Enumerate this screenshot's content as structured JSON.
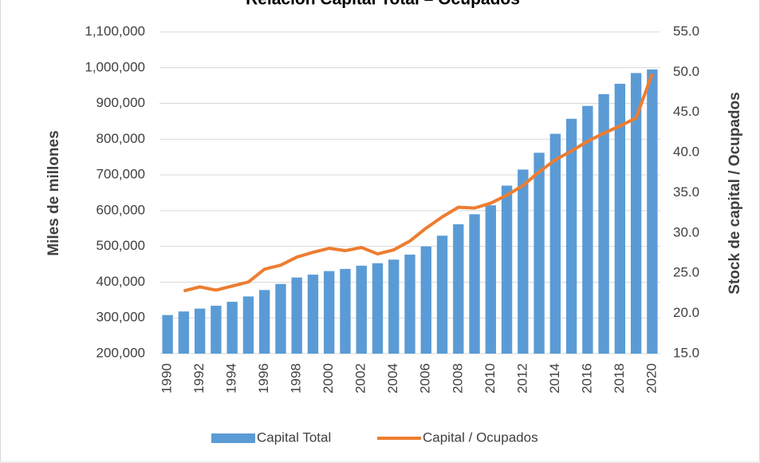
{
  "chart_data": {
    "type": "bar-line",
    "title": "Relación Capital Total – Ocupados",
    "categories": [
      "1990",
      null,
      "1992",
      null,
      "1994",
      null,
      "1996",
      null,
      "1998",
      null,
      "2000",
      null,
      "2002",
      null,
      "2004",
      null,
      "2006",
      null,
      "2008",
      null,
      "2010",
      null,
      "2012",
      null,
      "2014",
      null,
      "2016",
      null,
      "2018",
      null,
      "2020"
    ],
    "series": [
      {
        "name": "Capital Total",
        "color": "#5b9bd5",
        "axis": "y",
        "kind": "bar",
        "values": [
          308000,
          318000,
          326000,
          334000,
          345000,
          360000,
          378000,
          395000,
          413000,
          421000,
          431000,
          437000,
          446000,
          453000,
          463000,
          477000,
          500000,
          530000,
          562000,
          590000,
          615000,
          670000,
          715000,
          762000,
          815000,
          857000,
          893000,
          926000,
          955000,
          985000,
          995000
        ]
      },
      {
        "name": "Capital / Ocupados",
        "color": "#ed7d31",
        "axis": "y2",
        "kind": "line",
        "values": [
          null,
          22.8,
          23.3,
          22.9,
          23.4,
          23.9,
          25.5,
          26.0,
          27.0,
          27.6,
          28.1,
          27.8,
          28.2,
          27.4,
          27.9,
          29.0,
          30.6,
          32.0,
          33.2,
          33.1,
          33.7,
          34.7,
          35.9,
          37.6,
          39.1,
          40.2,
          41.4,
          42.4,
          43.3,
          44.3,
          49.8
        ]
      }
    ],
    "y_label": "Miles de millones",
    "y2_label": "Stock de capital / Ocupados",
    "ylim": [
      200000,
      1100000
    ],
    "yticks": [
      {
        "value": 200000,
        "label": "200,000"
      },
      {
        "value": 300000,
        "label": "300,000"
      },
      {
        "value": 400000,
        "label": "400,000"
      },
      {
        "value": 500000,
        "label": "500,000"
      },
      {
        "value": 600000,
        "label": "600,000"
      },
      {
        "value": 700000,
        "label": "700,000"
      },
      {
        "value": 800000,
        "label": "800,000"
      },
      {
        "value": 900000,
        "label": "900,000"
      },
      {
        "value": 1000000,
        "label": "1,000,000"
      },
      {
        "value": 1100000,
        "label": "1,100,000"
      }
    ],
    "y2lim": [
      15,
      55
    ],
    "y2ticks": [
      {
        "value": 15,
        "label": "15.0"
      },
      {
        "value": 20,
        "label": "20.0"
      },
      {
        "value": 25,
        "label": "25.0"
      },
      {
        "value": 30,
        "label": "30.0"
      },
      {
        "value": 35,
        "label": "35.0"
      },
      {
        "value": 40,
        "label": "40.0"
      },
      {
        "value": 45,
        "label": "45.0"
      },
      {
        "value": 50,
        "label": "50.0"
      },
      {
        "value": 55,
        "label": "55.0"
      }
    ],
    "grid": true,
    "legend": "bottom"
  }
}
